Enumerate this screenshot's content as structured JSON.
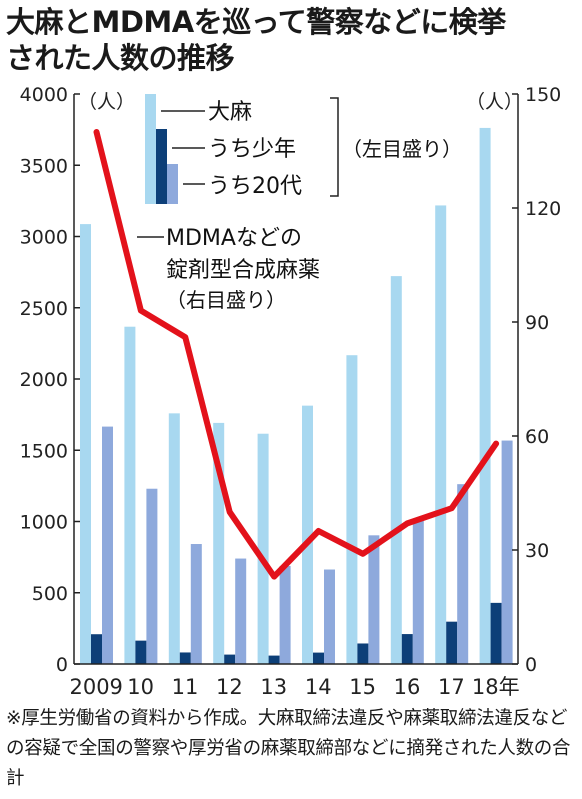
{
  "title_line1": "大麻とMDMAを巡って警察などに検挙",
  "title_line2": "された人数の推移",
  "note": "※厚生労働省の資料から作成。大麻取締法違反や麻薬取締法違反などの容疑で全国の警察や厚労省の麻薬取締部などに摘発された人数の合計",
  "colors": {
    "cannabis": "#a8d8f0",
    "youth": "#0d3f78",
    "twenties": "#8ea9dc",
    "mdma": "#e3121b",
    "axis": "#222222"
  },
  "chart_data": {
    "type": "bar+line",
    "categories": [
      "2009",
      "10",
      "11",
      "12",
      "13",
      "14",
      "15",
      "16",
      "17",
      "18年"
    ],
    "left_axis": {
      "unit": "（人）",
      "ylim": [
        0,
        4000
      ],
      "ticks": [
        0,
        500,
        1000,
        1500,
        2000,
        2500,
        3000,
        3500,
        4000
      ]
    },
    "right_axis": {
      "unit": "（人）",
      "ylim": [
        0,
        150
      ],
      "ticks": [
        0,
        30,
        60,
        90,
        120,
        150
      ]
    },
    "bar_series": [
      {
        "name": "大麻",
        "values": [
          3087,
          2367,
          1759,
          1692,
          1616,
          1813,
          2167,
          2722,
          3218,
          3762
        ]
      },
      {
        "name": "うち少年",
        "values": [
          209,
          164,
          81,
          66,
          59,
          80,
          144,
          210,
          297,
          429
        ]
      },
      {
        "name": "うち20代",
        "values": [
          1666,
          1230,
          842,
          740,
          688,
          663,
          903,
          1012,
          1262,
          1568
        ]
      }
    ],
    "bar_axis_label": "（左目盛り）",
    "line_series": {
      "name_line1": "MDMAなどの",
      "name_line2": "錠剤型合成麻薬",
      "axis_label": "（右目盛り）",
      "values": [
        140,
        93,
        86,
        40,
        23,
        35,
        29,
        37,
        41,
        58
      ]
    },
    "grid": false
  }
}
